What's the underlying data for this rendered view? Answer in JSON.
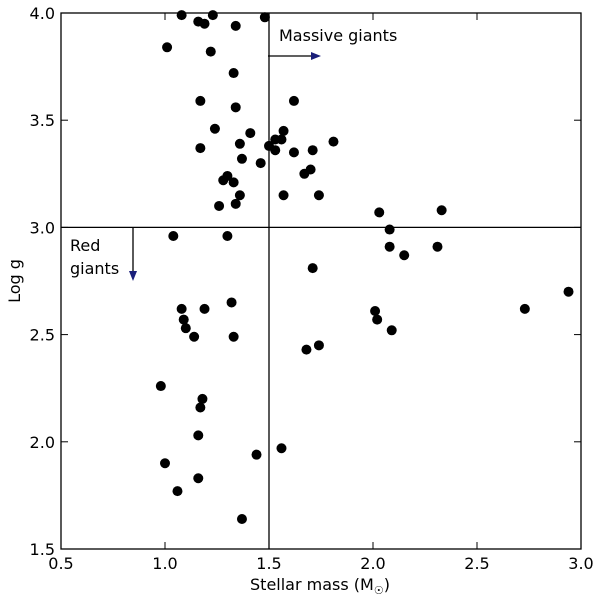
{
  "chart_data": {
    "type": "scatter",
    "xlabel_main": "Stellar mass (M",
    "xlabel_sub": "☉",
    "xlabel_close": ")",
    "ylabel": "Log g",
    "xlim": [
      0.5,
      3.0
    ],
    "ylim": [
      1.5,
      4.0
    ],
    "xticks": [
      0.5,
      1.0,
      1.5,
      2.0,
      2.5,
      3.0
    ],
    "xtick_labels": [
      "0.5",
      "1.0",
      "1.5",
      "2.0",
      "2.5",
      "3.0"
    ],
    "yticks": [
      1.5,
      2.0,
      2.5,
      3.0,
      3.5,
      4.0
    ],
    "ytick_labels": [
      "1.5",
      "2.0",
      "2.5",
      "3.0",
      "3.5",
      "4.0"
    ],
    "grid": false,
    "marker_color": "#000000",
    "arrow_color": "#1a1f7a",
    "reference_lines": {
      "vertical_x": 1.5,
      "horizontal_y": 3.0
    },
    "annotations": {
      "massive_line1": "Massive giants",
      "red_line1": "Red",
      "red_line2": "giants"
    },
    "points": [
      [
        1.08,
        3.99
      ],
      [
        1.16,
        3.96
      ],
      [
        1.19,
        3.95
      ],
      [
        1.23,
        3.99
      ],
      [
        1.34,
        3.94
      ],
      [
        1.48,
        3.98
      ],
      [
        1.01,
        3.84
      ],
      [
        1.22,
        3.82
      ],
      [
        1.33,
        3.72
      ],
      [
        1.17,
        3.59
      ],
      [
        1.34,
        3.56
      ],
      [
        1.62,
        3.59
      ],
      [
        1.24,
        3.46
      ],
      [
        1.41,
        3.44
      ],
      [
        1.57,
        3.45
      ],
      [
        1.53,
        3.41
      ],
      [
        1.56,
        3.41
      ],
      [
        1.81,
        3.4
      ],
      [
        1.17,
        3.37
      ],
      [
        1.36,
        3.39
      ],
      [
        1.5,
        3.38
      ],
      [
        1.53,
        3.36
      ],
      [
        1.62,
        3.35
      ],
      [
        1.71,
        3.36
      ],
      [
        1.37,
        3.32
      ],
      [
        1.46,
        3.3
      ],
      [
        1.67,
        3.25
      ],
      [
        1.7,
        3.27
      ],
      [
        1.3,
        3.24
      ],
      [
        1.28,
        3.22
      ],
      [
        1.33,
        3.21
      ],
      [
        1.36,
        3.15
      ],
      [
        1.34,
        3.11
      ],
      [
        1.26,
        3.1
      ],
      [
        1.57,
        3.15
      ],
      [
        1.74,
        3.15
      ],
      [
        2.03,
        3.07
      ],
      [
        2.33,
        3.08
      ],
      [
        1.04,
        2.96
      ],
      [
        1.3,
        2.96
      ],
      [
        2.08,
        2.99
      ],
      [
        2.08,
        2.91
      ],
      [
        2.15,
        2.87
      ],
      [
        2.31,
        2.91
      ],
      [
        1.71,
        2.81
      ],
      [
        2.94,
        2.7
      ],
      [
        2.73,
        2.62
      ],
      [
        2.01,
        2.61
      ],
      [
        2.02,
        2.57
      ],
      [
        2.09,
        2.52
      ],
      [
        1.08,
        2.62
      ],
      [
        1.19,
        2.62
      ],
      [
        1.32,
        2.65
      ],
      [
        1.09,
        2.57
      ],
      [
        1.1,
        2.53
      ],
      [
        1.14,
        2.49
      ],
      [
        1.33,
        2.49
      ],
      [
        1.68,
        2.43
      ],
      [
        1.74,
        2.45
      ],
      [
        0.98,
        2.26
      ],
      [
        1.18,
        2.2
      ],
      [
        1.17,
        2.16
      ],
      [
        1.16,
        2.03
      ],
      [
        1.44,
        1.94
      ],
      [
        1.56,
        1.97
      ],
      [
        1.0,
        1.9
      ],
      [
        1.16,
        1.83
      ],
      [
        1.06,
        1.77
      ],
      [
        1.37,
        1.64
      ]
    ]
  }
}
